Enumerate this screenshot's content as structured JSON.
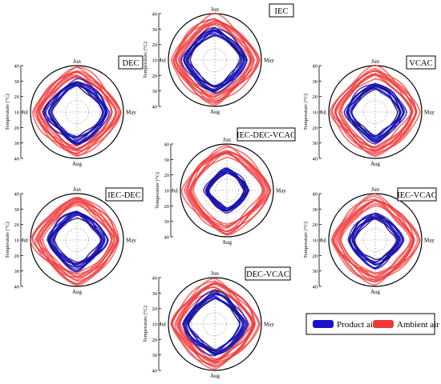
{
  "chart_data": {
    "type": "polar-line",
    "angular_labels": {
      "top": "Jun",
      "right": "May",
      "bottom": "Aug",
      "left": "Jul"
    },
    "radial_axis_label": "Temperature (°C)",
    "radial_ticks": [
      40,
      30,
      20,
      10,
      20,
      30,
      40
    ],
    "legend": [
      {
        "name": "Product air",
        "color": "#1a12c8"
      },
      {
        "name": "Ambient air",
        "color": "#f03a3a"
      }
    ],
    "legend_position": "bottom-right",
    "panels": [
      {
        "title": "IEC",
        "product_radius_c": [
          22,
          28
        ],
        "ambient_radius_c": [
          30,
          38
        ]
      },
      {
        "title": "DEC",
        "product_radius_c": [
          22,
          28
        ],
        "ambient_radius_c": [
          30,
          38
        ]
      },
      {
        "title": "VCAC",
        "product_radius_c": [
          20,
          26
        ],
        "ambient_radius_c": [
          30,
          38
        ]
      },
      {
        "title": "IEC-DEC-VCAC",
        "product_radius_c": [
          15,
          19
        ],
        "ambient_radius_c": [
          30,
          38
        ]
      },
      {
        "title": "IEC-DEC",
        "product_radius_c": [
          20,
          26
        ],
        "ambient_radius_c": [
          30,
          38
        ]
      },
      {
        "title": "IEC-VCAC",
        "product_radius_c": [
          18,
          24
        ],
        "ambient_radius_c": [
          30,
          38
        ]
      },
      {
        "title": "DEC-VCAC",
        "product_radius_c": [
          22,
          28
        ],
        "ambient_radius_c": [
          30,
          38
        ]
      }
    ]
  }
}
